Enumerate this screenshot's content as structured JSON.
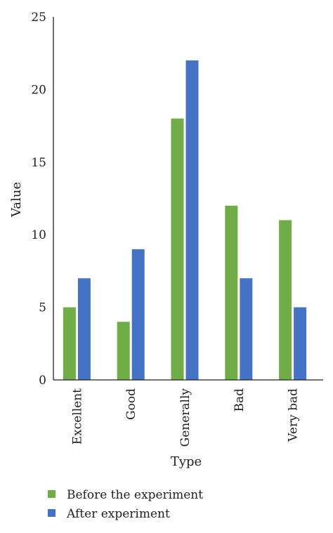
{
  "chart_data": {
    "type": "bar",
    "title": "",
    "xlabel": "Type",
    "ylabel": "Value",
    "ylim": [
      0,
      25
    ],
    "yticks": [
      0,
      5,
      10,
      15,
      20,
      25
    ],
    "categories": [
      "Excellent",
      "Good",
      "Generally",
      "Bad",
      "Very bad"
    ],
    "series": [
      {
        "name": "Before the experiment",
        "color": "#70ad47",
        "values": [
          5,
          4,
          18,
          12,
          11
        ]
      },
      {
        "name": "After experiment",
        "color": "#4472c4",
        "values": [
          7,
          9,
          22,
          7,
          5
        ]
      }
    ],
    "legend_position": "bottom-left",
    "grid": false
  }
}
